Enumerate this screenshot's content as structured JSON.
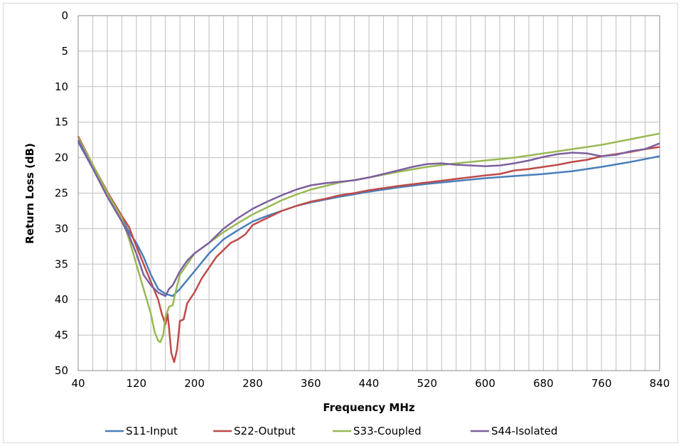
{
  "chart_data": {
    "type": "line",
    "title": "",
    "xlabel": "Frequency MHz",
    "ylabel": "Return Loss (dB)",
    "xlim": [
      40,
      840
    ],
    "ylim": [
      0,
      50
    ],
    "y_inverted": true,
    "x_ticks": [
      "40",
      "120",
      "200",
      "280",
      "360",
      "440",
      "520",
      "600",
      "680",
      "760",
      "840"
    ],
    "y_ticks": [
      "0",
      "5",
      "10",
      "15",
      "20",
      "25",
      "30",
      "35",
      "40",
      "45",
      "50"
    ],
    "grid": true,
    "legend": "bottom",
    "series": [
      {
        "name": "S11-Input",
        "color": "#4a7ebb",
        "points": [
          [
            40,
            17.8
          ],
          [
            60,
            21.5
          ],
          [
            80,
            25
          ],
          [
            100,
            28.5
          ],
          [
            110,
            30.5
          ],
          [
            120,
            32
          ],
          [
            130,
            34
          ],
          [
            140,
            36.5
          ],
          [
            150,
            38.5
          ],
          [
            160,
            39.2
          ],
          [
            170,
            39.5
          ],
          [
            180,
            38.5
          ],
          [
            200,
            36
          ],
          [
            220,
            33.5
          ],
          [
            240,
            31.5
          ],
          [
            260,
            30.2
          ],
          [
            280,
            29
          ],
          [
            300,
            28.2
          ],
          [
            320,
            27.5
          ],
          [
            340,
            26.8
          ],
          [
            360,
            26.3
          ],
          [
            400,
            25.5
          ],
          [
            440,
            24.8
          ],
          [
            480,
            24.2
          ],
          [
            520,
            23.7
          ],
          [
            560,
            23.3
          ],
          [
            600,
            22.9
          ],
          [
            640,
            22.6
          ],
          [
            680,
            22.3
          ],
          [
            720,
            21.9
          ],
          [
            760,
            21.3
          ],
          [
            800,
            20.6
          ],
          [
            840,
            19.8
          ]
        ]
      },
      {
        "name": "S22-Output",
        "color": "#be4b48",
        "points": [
          [
            40,
            17
          ],
          [
            60,
            21
          ],
          [
            80,
            24.8
          ],
          [
            100,
            28.2
          ],
          [
            110,
            29.8
          ],
          [
            120,
            32.5
          ],
          [
            130,
            35
          ],
          [
            140,
            37.5
          ],
          [
            150,
            40
          ],
          [
            155,
            42
          ],
          [
            160,
            43.5
          ],
          [
            163,
            42
          ],
          [
            165,
            44
          ],
          [
            168,
            47.5
          ],
          [
            172,
            48.8
          ],
          [
            176,
            47
          ],
          [
            180,
            43
          ],
          [
            185,
            42.8
          ],
          [
            190,
            40.5
          ],
          [
            200,
            39
          ],
          [
            210,
            37
          ],
          [
            220,
            35.5
          ],
          [
            230,
            34
          ],
          [
            240,
            33
          ],
          [
            250,
            32
          ],
          [
            260,
            31.5
          ],
          [
            270,
            30.8
          ],
          [
            280,
            29.5
          ],
          [
            300,
            28.5
          ],
          [
            320,
            27.5
          ],
          [
            340,
            26.8
          ],
          [
            360,
            26.2
          ],
          [
            380,
            25.8
          ],
          [
            400,
            25.3
          ],
          [
            420,
            25
          ],
          [
            440,
            24.6
          ],
          [
            480,
            24
          ],
          [
            520,
            23.5
          ],
          [
            560,
            23
          ],
          [
            600,
            22.5
          ],
          [
            620,
            22.3
          ],
          [
            640,
            21.8
          ],
          [
            660,
            21.6
          ],
          [
            680,
            21.3
          ],
          [
            700,
            21
          ],
          [
            720,
            20.6
          ],
          [
            740,
            20.3
          ],
          [
            760,
            19.8
          ],
          [
            780,
            19.5
          ],
          [
            800,
            19.2
          ],
          [
            820,
            18.8
          ],
          [
            840,
            18.5
          ]
        ]
      },
      {
        "name": "S33-Coupled",
        "color": "#98b954",
        "points": [
          [
            40,
            17.2
          ],
          [
            60,
            21
          ],
          [
            80,
            25
          ],
          [
            100,
            28.5
          ],
          [
            110,
            31.5
          ],
          [
            120,
            35
          ],
          [
            130,
            38.5
          ],
          [
            140,
            42
          ],
          [
            145,
            44.5
          ],
          [
            150,
            45.8
          ],
          [
            153,
            46
          ],
          [
            157,
            45
          ],
          [
            160,
            42.5
          ],
          [
            165,
            41
          ],
          [
            170,
            40.8
          ],
          [
            175,
            38.5
          ],
          [
            180,
            36.5
          ],
          [
            190,
            35
          ],
          [
            200,
            33.5
          ],
          [
            220,
            32
          ],
          [
            240,
            30.5
          ],
          [
            260,
            29.2
          ],
          [
            280,
            28
          ],
          [
            300,
            27
          ],
          [
            320,
            26
          ],
          [
            340,
            25.2
          ],
          [
            360,
            24.5
          ],
          [
            400,
            23.5
          ],
          [
            440,
            22.8
          ],
          [
            480,
            22
          ],
          [
            520,
            21.3
          ],
          [
            560,
            20.8
          ],
          [
            600,
            20.4
          ],
          [
            640,
            20
          ],
          [
            680,
            19.4
          ],
          [
            720,
            18.8
          ],
          [
            760,
            18.2
          ],
          [
            800,
            17.4
          ],
          [
            840,
            16.6
          ]
        ]
      },
      {
        "name": "S44-Isolated",
        "color": "#7d60a0",
        "points": [
          [
            40,
            17.5
          ],
          [
            60,
            21.5
          ],
          [
            80,
            25.5
          ],
          [
            100,
            29
          ],
          [
            110,
            31
          ],
          [
            120,
            33.5
          ],
          [
            130,
            36.5
          ],
          [
            140,
            38
          ],
          [
            150,
            39
          ],
          [
            160,
            39.5
          ],
          [
            165,
            38.5
          ],
          [
            170,
            38
          ],
          [
            180,
            36
          ],
          [
            190,
            34.5
          ],
          [
            200,
            33.5
          ],
          [
            220,
            32
          ],
          [
            240,
            30
          ],
          [
            260,
            28.5
          ],
          [
            280,
            27.2
          ],
          [
            300,
            26.2
          ],
          [
            320,
            25.3
          ],
          [
            340,
            24.5
          ],
          [
            360,
            23.9
          ],
          [
            380,
            23.6
          ],
          [
            400,
            23.4
          ],
          [
            420,
            23.2
          ],
          [
            440,
            22.8
          ],
          [
            460,
            22.3
          ],
          [
            480,
            21.8
          ],
          [
            500,
            21.3
          ],
          [
            520,
            20.9
          ],
          [
            540,
            20.8
          ],
          [
            560,
            21
          ],
          [
            580,
            21.1
          ],
          [
            600,
            21.2
          ],
          [
            620,
            21.1
          ],
          [
            640,
            20.8
          ],
          [
            660,
            20.4
          ],
          [
            680,
            19.9
          ],
          [
            700,
            19.5
          ],
          [
            720,
            19.3
          ],
          [
            740,
            19.4
          ],
          [
            760,
            19.8
          ],
          [
            780,
            19.6
          ],
          [
            800,
            19.1
          ],
          [
            820,
            18.8
          ],
          [
            840,
            18
          ]
        ]
      }
    ]
  }
}
